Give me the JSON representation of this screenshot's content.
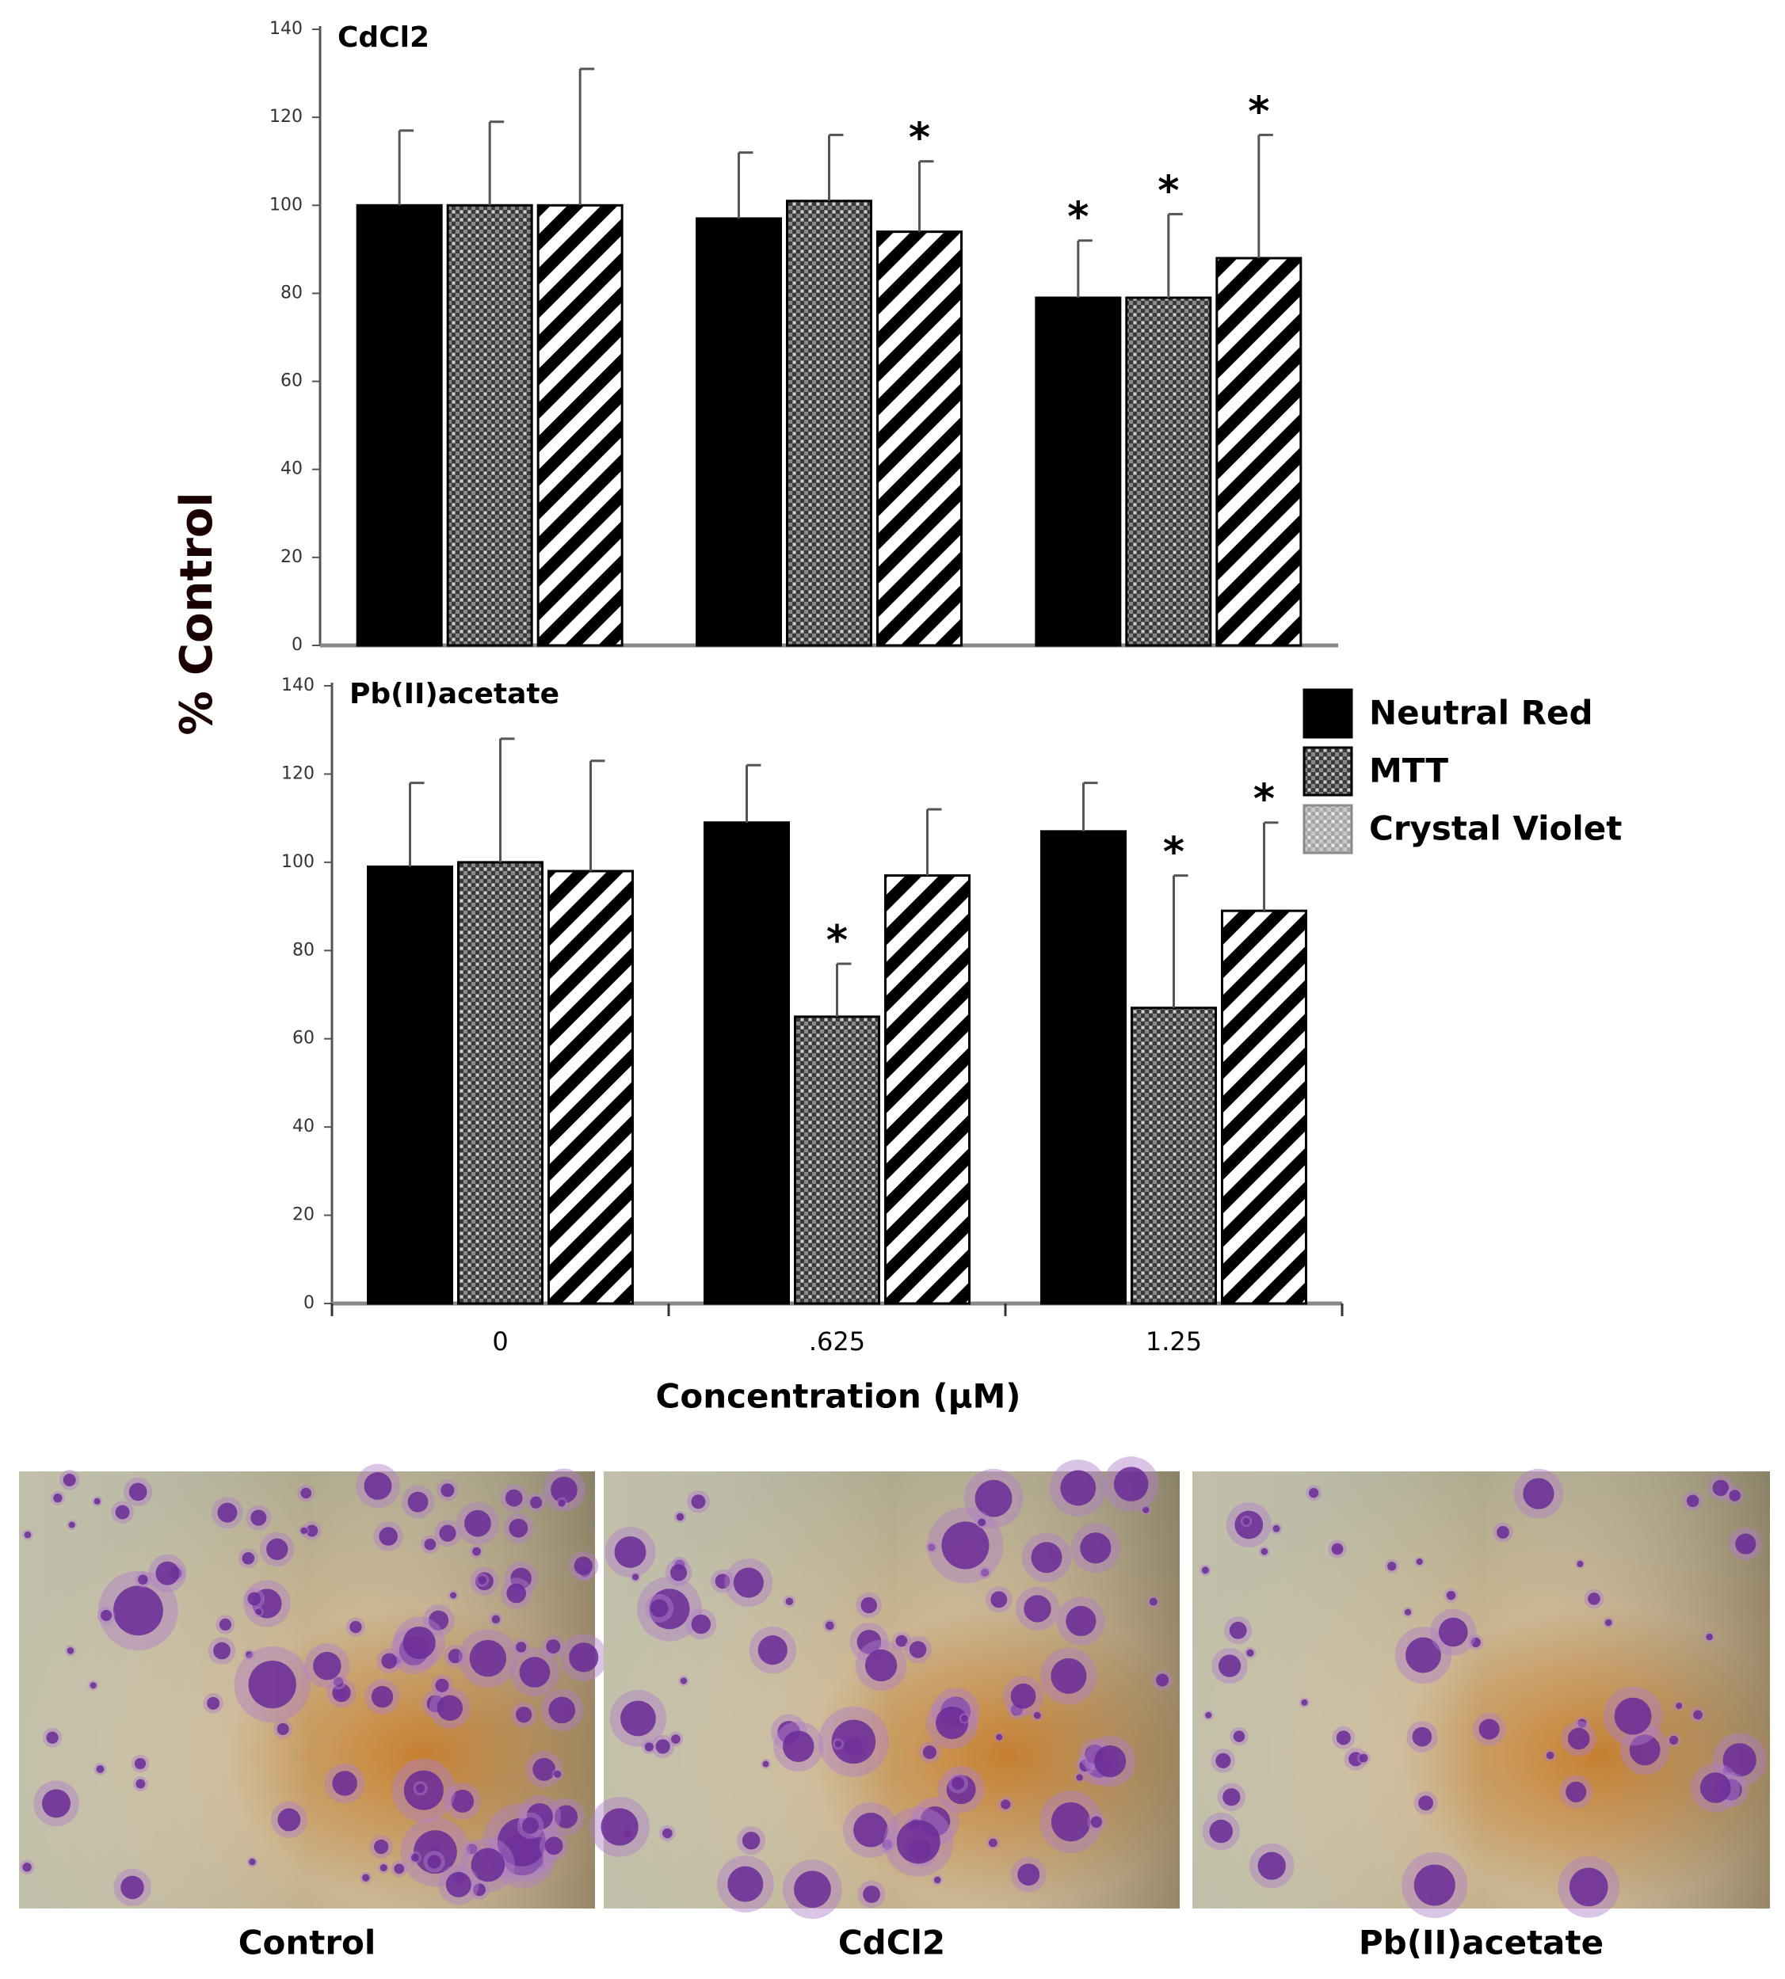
{
  "chart_data": [
    {
      "type": "bar",
      "title": "CdCl2",
      "ylabel": "% Control",
      "categories": [
        null,
        null,
        null
      ],
      "ylim": [
        0,
        140
      ],
      "yticks": [
        0,
        20,
        40,
        60,
        80,
        100,
        120,
        140
      ],
      "series": [
        {
          "color": "#000000",
          "pattern": "solid",
          "values": [
            100,
            97,
            79
          ],
          "errors": [
            17,
            15,
            13
          ],
          "annotations": [
            null,
            null,
            "*"
          ]
        },
        {
          "color": "#555555",
          "pattern": "checker",
          "values": [
            100,
            101,
            79
          ],
          "errors": [
            19,
            15,
            19
          ],
          "annotations": [
            null,
            null,
            "*"
          ]
        },
        {
          "color": "#000000",
          "pattern": "diagonal",
          "values": [
            100,
            94,
            88
          ],
          "errors": [
            31,
            16,
            28
          ],
          "annotations": [
            null,
            "*",
            "*"
          ]
        }
      ]
    },
    {
      "type": "bar",
      "title": "Pb(II)acetate",
      "xlabel": "Concentration (μM)",
      "categories": [
        "0",
        ".625",
        "1.25"
      ],
      "ylim": [
        0,
        140
      ],
      "yticks": [
        0,
        20,
        40,
        60,
        80,
        100,
        120,
        140
      ],
      "legend": "upper right",
      "series": [
        {
          "name": "Neutral Red",
          "color": "#000000",
          "pattern": "solid",
          "values": [
            99,
            109,
            107
          ],
          "errors": [
            19,
            13,
            11
          ],
          "annotations": [
            null,
            null,
            null
          ]
        },
        {
          "name": "MTT",
          "color": "#555555",
          "pattern": "checker",
          "values": [
            100,
            65,
            67
          ],
          "errors": [
            28,
            12,
            30
          ],
          "annotations": [
            null,
            "*",
            "*"
          ]
        },
        {
          "name": "Crystal Violet",
          "color": "#000000",
          "pattern": "diagonal",
          "values": [
            98,
            97,
            89
          ],
          "errors": [
            25,
            15,
            20
          ],
          "annotations": [
            null,
            null,
            "*"
          ]
        }
      ]
    }
  ],
  "images": {
    "captions": [
      "Control",
      "CdCl2",
      "Pb(II)acetate"
    ]
  }
}
